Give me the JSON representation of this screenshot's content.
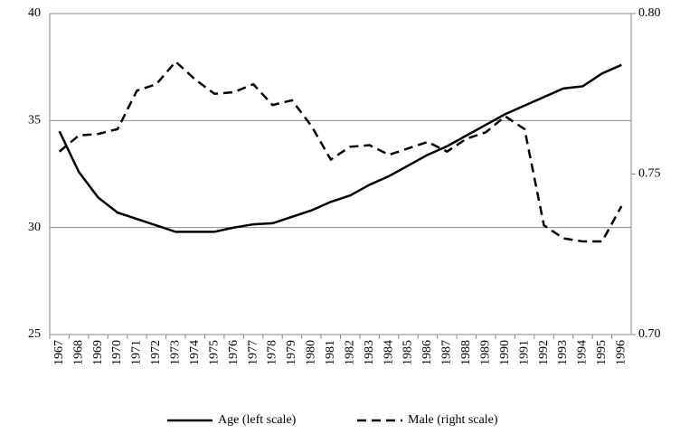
{
  "chart_data": {
    "type": "line",
    "categories": [
      "1967",
      "1968",
      "1969",
      "1970",
      "1971",
      "1972",
      "1973",
      "1974",
      "1975",
      "1976",
      "1977",
      "1978",
      "1979",
      "1980",
      "1981",
      "1982",
      "1983",
      "1984",
      "1985",
      "1986",
      "1987",
      "1988",
      "1989",
      "1990",
      "1991",
      "1992",
      "1993",
      "1994",
      "1995",
      "1996"
    ],
    "series": [
      {
        "name": "Age (left scale)",
        "color": "#000000",
        "dash": false,
        "values": [
          34.5,
          32.6,
          31.4,
          30.7,
          30.4,
          30.1,
          29.8,
          29.8,
          29.8,
          30.0,
          30.15,
          30.2,
          30.5,
          30.8,
          31.2,
          31.5,
          32.0,
          32.4,
          32.9,
          33.4,
          33.8,
          34.3,
          34.8,
          35.3,
          35.7,
          36.1,
          36.5,
          36.6,
          37.2,
          37.6
        ]
      },
      {
        "name": "Male (right scale)",
        "color": "#000000",
        "dash": true,
        "axis": "y2",
        "values": [
          0.757,
          0.762,
          0.7625,
          0.764,
          0.776,
          0.778,
          0.785,
          0.7795,
          0.775,
          0.7755,
          0.778,
          0.7715,
          0.773,
          0.765,
          0.7545,
          0.7585,
          0.759,
          0.756,
          0.758,
          0.76,
          0.757,
          0.761,
          0.763,
          0.768,
          0.764,
          0.734,
          0.73,
          0.729,
          0.729,
          0.74
        ]
      }
    ],
    "ylim": [
      25,
      40
    ],
    "yticks": [
      25,
      30,
      35,
      40
    ],
    "y2lim": [
      0.7,
      0.8
    ],
    "y2ticks": [
      {
        "value": 0.7,
        "label": "0.70"
      },
      {
        "value": 0.75,
        "label": "0.75"
      },
      {
        "value": 0.8,
        "label": "0.80"
      }
    ],
    "grid": true,
    "legend": "bottom"
  }
}
